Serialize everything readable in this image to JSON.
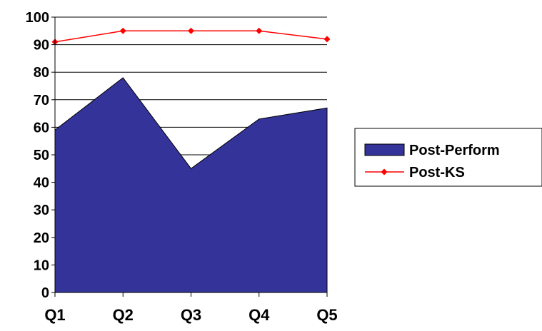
{
  "chart_data": {
    "type": "area",
    "categories": [
      "Q1",
      "Q2",
      "Q3",
      "Q4",
      "Q5"
    ],
    "ylim": [
      0,
      100
    ],
    "yticks": [
      0,
      10,
      20,
      30,
      40,
      50,
      60,
      70,
      80,
      90,
      100
    ],
    "grid": true,
    "legend_position": "right",
    "series": [
      {
        "name": "Post-Perform",
        "type": "area",
        "values": [
          59,
          78,
          45,
          63,
          67
        ],
        "color": "#333399"
      },
      {
        "name": "Post-KS",
        "type": "line",
        "values": [
          91,
          95,
          95,
          95,
          92
        ],
        "color": "#ff0000",
        "marker": "diamond"
      }
    ]
  }
}
